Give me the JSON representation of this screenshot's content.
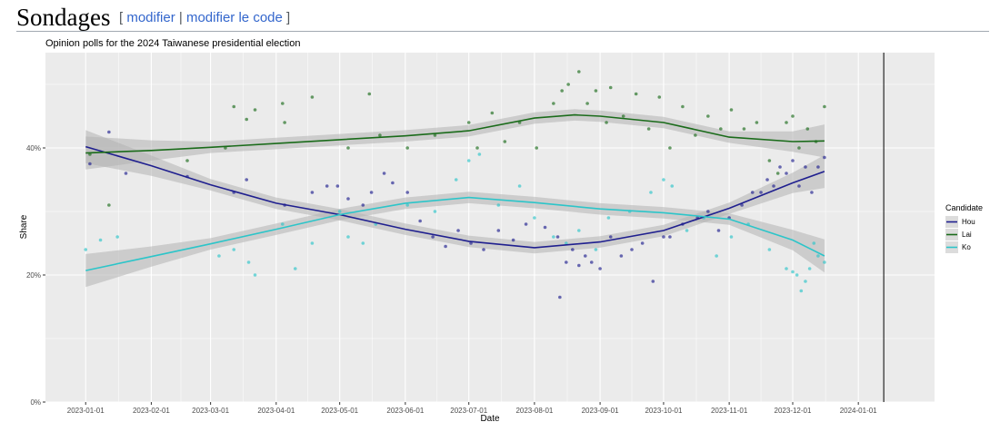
{
  "heading": {
    "title": "Sondages",
    "open_bracket": "[",
    "edit_label": "modifier",
    "separator": "|",
    "edit_code_label": "modifier le code",
    "close_bracket": "]"
  },
  "colors": {
    "Hou": "#1f1f8f",
    "Lai": "#1a6b1a",
    "Ko": "#2cc5c9",
    "panel_bg": "#ebebeb",
    "grid": "#ffffff",
    "ribbon": "#b3b3b3"
  },
  "chart_data": {
    "type": "scatter",
    "title": "Opinion polls for the 2024 Taiwanese presidential election",
    "xlabel": "Date",
    "ylabel": "Share",
    "x_ticks": [
      "2023-01-01",
      "2023-02-01",
      "2023-03-01",
      "2023-04-01",
      "2023-05-01",
      "2023-06-01",
      "2023-07-01",
      "2023-08-01",
      "2023-09-01",
      "2023-10-01",
      "2023-11-01",
      "2023-12-01",
      "2024-01-01"
    ],
    "y_ticks": [
      "0%",
      "20%",
      "40%"
    ],
    "ylim": [
      0,
      0.55
    ],
    "xlim": [
      "2022-12-13",
      "2024-02-06"
    ],
    "grid": true,
    "vertical_line": "2024-01-13",
    "legend": {
      "title": "Candidate",
      "position": "right"
    },
    "series": [
      {
        "name": "Hou",
        "trend": [
          [
            "2023-01-01",
            0.402
          ],
          [
            "2023-02-01",
            0.372
          ],
          [
            "2023-03-01",
            0.342
          ],
          [
            "2023-04-01",
            0.313
          ],
          [
            "2023-05-01",
            0.295
          ],
          [
            "2023-06-01",
            0.272
          ],
          [
            "2023-07-01",
            0.253
          ],
          [
            "2023-08-01",
            0.243
          ],
          [
            "2023-09-01",
            0.252
          ],
          [
            "2023-10-01",
            0.27
          ],
          [
            "2023-11-01",
            0.305
          ],
          [
            "2023-12-01",
            0.345
          ],
          [
            "2023-12-16",
            0.363
          ]
        ],
        "points": [
          [
            "2023-01-03",
            0.375
          ],
          [
            "2023-01-12",
            0.425
          ],
          [
            "2023-01-20",
            0.36
          ],
          [
            "2023-02-18",
            0.355
          ],
          [
            "2023-03-12",
            0.33
          ],
          [
            "2023-03-18",
            0.35
          ],
          [
            "2023-04-05",
            0.31
          ],
          [
            "2023-04-18",
            0.33
          ],
          [
            "2023-04-25",
            0.34
          ],
          [
            "2023-04-30",
            0.34
          ],
          [
            "2023-05-05",
            0.32
          ],
          [
            "2023-05-12",
            0.31
          ],
          [
            "2023-05-16",
            0.33
          ],
          [
            "2023-05-22",
            0.36
          ],
          [
            "2023-05-26",
            0.345
          ],
          [
            "2023-06-02",
            0.33
          ],
          [
            "2023-06-08",
            0.285
          ],
          [
            "2023-06-14",
            0.26
          ],
          [
            "2023-06-20",
            0.245
          ],
          [
            "2023-06-26",
            0.27
          ],
          [
            "2023-07-02",
            0.25
          ],
          [
            "2023-07-08",
            0.24
          ],
          [
            "2023-07-15",
            0.27
          ],
          [
            "2023-07-22",
            0.255
          ],
          [
            "2023-07-28",
            0.28
          ],
          [
            "2023-08-06",
            0.275
          ],
          [
            "2023-08-12",
            0.26
          ],
          [
            "2023-08-13",
            0.165
          ],
          [
            "2023-08-16",
            0.22
          ],
          [
            "2023-08-19",
            0.24
          ],
          [
            "2023-08-22",
            0.215
          ],
          [
            "2023-08-25",
            0.23
          ],
          [
            "2023-08-28",
            0.22
          ],
          [
            "2023-09-01",
            0.21
          ],
          [
            "2023-09-06",
            0.26
          ],
          [
            "2023-09-11",
            0.23
          ],
          [
            "2023-09-16",
            0.24
          ],
          [
            "2023-09-21",
            0.25
          ],
          [
            "2023-09-26",
            0.19
          ],
          [
            "2023-10-01",
            0.26
          ],
          [
            "2023-10-04",
            0.26
          ],
          [
            "2023-10-10",
            0.28
          ],
          [
            "2023-10-17",
            0.29
          ],
          [
            "2023-10-22",
            0.3
          ],
          [
            "2023-10-27",
            0.27
          ],
          [
            "2023-11-01",
            0.29
          ],
          [
            "2023-11-07",
            0.31
          ],
          [
            "2023-11-12",
            0.33
          ],
          [
            "2023-11-16",
            0.33
          ],
          [
            "2023-11-19",
            0.35
          ],
          [
            "2023-11-22",
            0.34
          ],
          [
            "2023-11-25",
            0.37
          ],
          [
            "2023-11-28",
            0.36
          ],
          [
            "2023-12-01",
            0.38
          ],
          [
            "2023-12-04",
            0.34
          ],
          [
            "2023-12-07",
            0.37
          ],
          [
            "2023-12-10",
            0.33
          ],
          [
            "2023-12-13",
            0.37
          ],
          [
            "2023-12-16",
            0.385
          ]
        ]
      },
      {
        "name": "Lai",
        "trend": [
          [
            "2023-01-01",
            0.392
          ],
          [
            "2023-02-01",
            0.396
          ],
          [
            "2023-03-01",
            0.401
          ],
          [
            "2023-04-01",
            0.407
          ],
          [
            "2023-05-01",
            0.413
          ],
          [
            "2023-06-01",
            0.419
          ],
          [
            "2023-07-01",
            0.427
          ],
          [
            "2023-08-01",
            0.447
          ],
          [
            "2023-08-20",
            0.452
          ],
          [
            "2023-09-01",
            0.45
          ],
          [
            "2023-10-01",
            0.44
          ],
          [
            "2023-11-01",
            0.417
          ],
          [
            "2023-12-01",
            0.41
          ],
          [
            "2023-12-16",
            0.411
          ]
        ],
        "points": [
          [
            "2023-01-03",
            0.39
          ],
          [
            "2023-01-12",
            0.31
          ],
          [
            "2023-02-18",
            0.38
          ],
          [
            "2023-03-08",
            0.4
          ],
          [
            "2023-03-12",
            0.465
          ],
          [
            "2023-03-18",
            0.445
          ],
          [
            "2023-03-22",
            0.46
          ],
          [
            "2023-04-04",
            0.47
          ],
          [
            "2023-04-05",
            0.44
          ],
          [
            "2023-04-18",
            0.48
          ],
          [
            "2023-05-05",
            0.4
          ],
          [
            "2023-05-15",
            0.485
          ],
          [
            "2023-05-20",
            0.42
          ],
          [
            "2023-06-02",
            0.4
          ],
          [
            "2023-06-15",
            0.42
          ],
          [
            "2023-07-01",
            0.44
          ],
          [
            "2023-07-05",
            0.4
          ],
          [
            "2023-07-12",
            0.455
          ],
          [
            "2023-07-18",
            0.41
          ],
          [
            "2023-07-25",
            0.44
          ],
          [
            "2023-08-02",
            0.4
          ],
          [
            "2023-08-10",
            0.47
          ],
          [
            "2023-08-14",
            0.49
          ],
          [
            "2023-08-17",
            0.5
          ],
          [
            "2023-08-22",
            0.52
          ],
          [
            "2023-08-26",
            0.47
          ],
          [
            "2023-08-30",
            0.49
          ],
          [
            "2023-09-04",
            0.44
          ],
          [
            "2023-09-06",
            0.495
          ],
          [
            "2023-09-12",
            0.45
          ],
          [
            "2023-09-18",
            0.485
          ],
          [
            "2023-09-24",
            0.43
          ],
          [
            "2023-09-29",
            0.48
          ],
          [
            "2023-10-04",
            0.4
          ],
          [
            "2023-10-10",
            0.465
          ],
          [
            "2023-10-16",
            0.42
          ],
          [
            "2023-10-22",
            0.45
          ],
          [
            "2023-10-28",
            0.43
          ],
          [
            "2023-11-02",
            0.46
          ],
          [
            "2023-11-08",
            0.43
          ],
          [
            "2023-11-14",
            0.44
          ],
          [
            "2023-11-20",
            0.38
          ],
          [
            "2023-11-24",
            0.36
          ],
          [
            "2023-11-28",
            0.44
          ],
          [
            "2023-12-01",
            0.45
          ],
          [
            "2023-12-04",
            0.4
          ],
          [
            "2023-12-08",
            0.43
          ],
          [
            "2023-12-12",
            0.41
          ],
          [
            "2023-12-16",
            0.465
          ]
        ]
      },
      {
        "name": "Ko",
        "trend": [
          [
            "2023-01-01",
            0.207
          ],
          [
            "2023-02-01",
            0.229
          ],
          [
            "2023-03-01",
            0.249
          ],
          [
            "2023-04-01",
            0.272
          ],
          [
            "2023-05-01",
            0.295
          ],
          [
            "2023-06-01",
            0.313
          ],
          [
            "2023-07-01",
            0.322
          ],
          [
            "2023-08-01",
            0.314
          ],
          [
            "2023-09-01",
            0.304
          ],
          [
            "2023-10-01",
            0.298
          ],
          [
            "2023-11-01",
            0.288
          ],
          [
            "2023-12-01",
            0.255
          ],
          [
            "2023-12-16",
            0.23
          ]
        ],
        "points": [
          [
            "2023-01-01",
            0.24
          ],
          [
            "2023-01-08",
            0.255
          ],
          [
            "2023-01-16",
            0.26
          ],
          [
            "2023-03-05",
            0.23
          ],
          [
            "2023-03-12",
            0.24
          ],
          [
            "2023-03-19",
            0.22
          ],
          [
            "2023-03-22",
            0.2
          ],
          [
            "2023-04-04",
            0.28
          ],
          [
            "2023-04-10",
            0.21
          ],
          [
            "2023-04-18",
            0.25
          ],
          [
            "2023-05-01",
            0.3
          ],
          [
            "2023-05-05",
            0.26
          ],
          [
            "2023-05-12",
            0.25
          ],
          [
            "2023-05-18",
            0.28
          ],
          [
            "2023-06-02",
            0.31
          ],
          [
            "2023-06-15",
            0.3
          ],
          [
            "2023-06-25",
            0.35
          ],
          [
            "2023-07-01",
            0.38
          ],
          [
            "2023-07-06",
            0.39
          ],
          [
            "2023-07-15",
            0.31
          ],
          [
            "2023-07-25",
            0.34
          ],
          [
            "2023-08-01",
            0.29
          ],
          [
            "2023-08-10",
            0.26
          ],
          [
            "2023-08-16",
            0.25
          ],
          [
            "2023-08-22",
            0.27
          ],
          [
            "2023-08-30",
            0.24
          ],
          [
            "2023-09-05",
            0.29
          ],
          [
            "2023-09-15",
            0.3
          ],
          [
            "2023-09-25",
            0.33
          ],
          [
            "2023-10-01",
            0.35
          ],
          [
            "2023-10-05",
            0.34
          ],
          [
            "2023-10-12",
            0.27
          ],
          [
            "2023-10-20",
            0.29
          ],
          [
            "2023-10-26",
            0.23
          ],
          [
            "2023-11-02",
            0.26
          ],
          [
            "2023-11-10",
            0.28
          ],
          [
            "2023-11-20",
            0.24
          ],
          [
            "2023-11-28",
            0.21
          ],
          [
            "2023-12-01",
            0.205
          ],
          [
            "2023-12-03",
            0.2
          ],
          [
            "2023-12-05",
            0.175
          ],
          [
            "2023-12-07",
            0.19
          ],
          [
            "2023-12-09",
            0.21
          ],
          [
            "2023-12-11",
            0.25
          ],
          [
            "2023-12-13",
            0.23
          ],
          [
            "2023-12-16",
            0.22
          ]
        ]
      }
    ]
  }
}
